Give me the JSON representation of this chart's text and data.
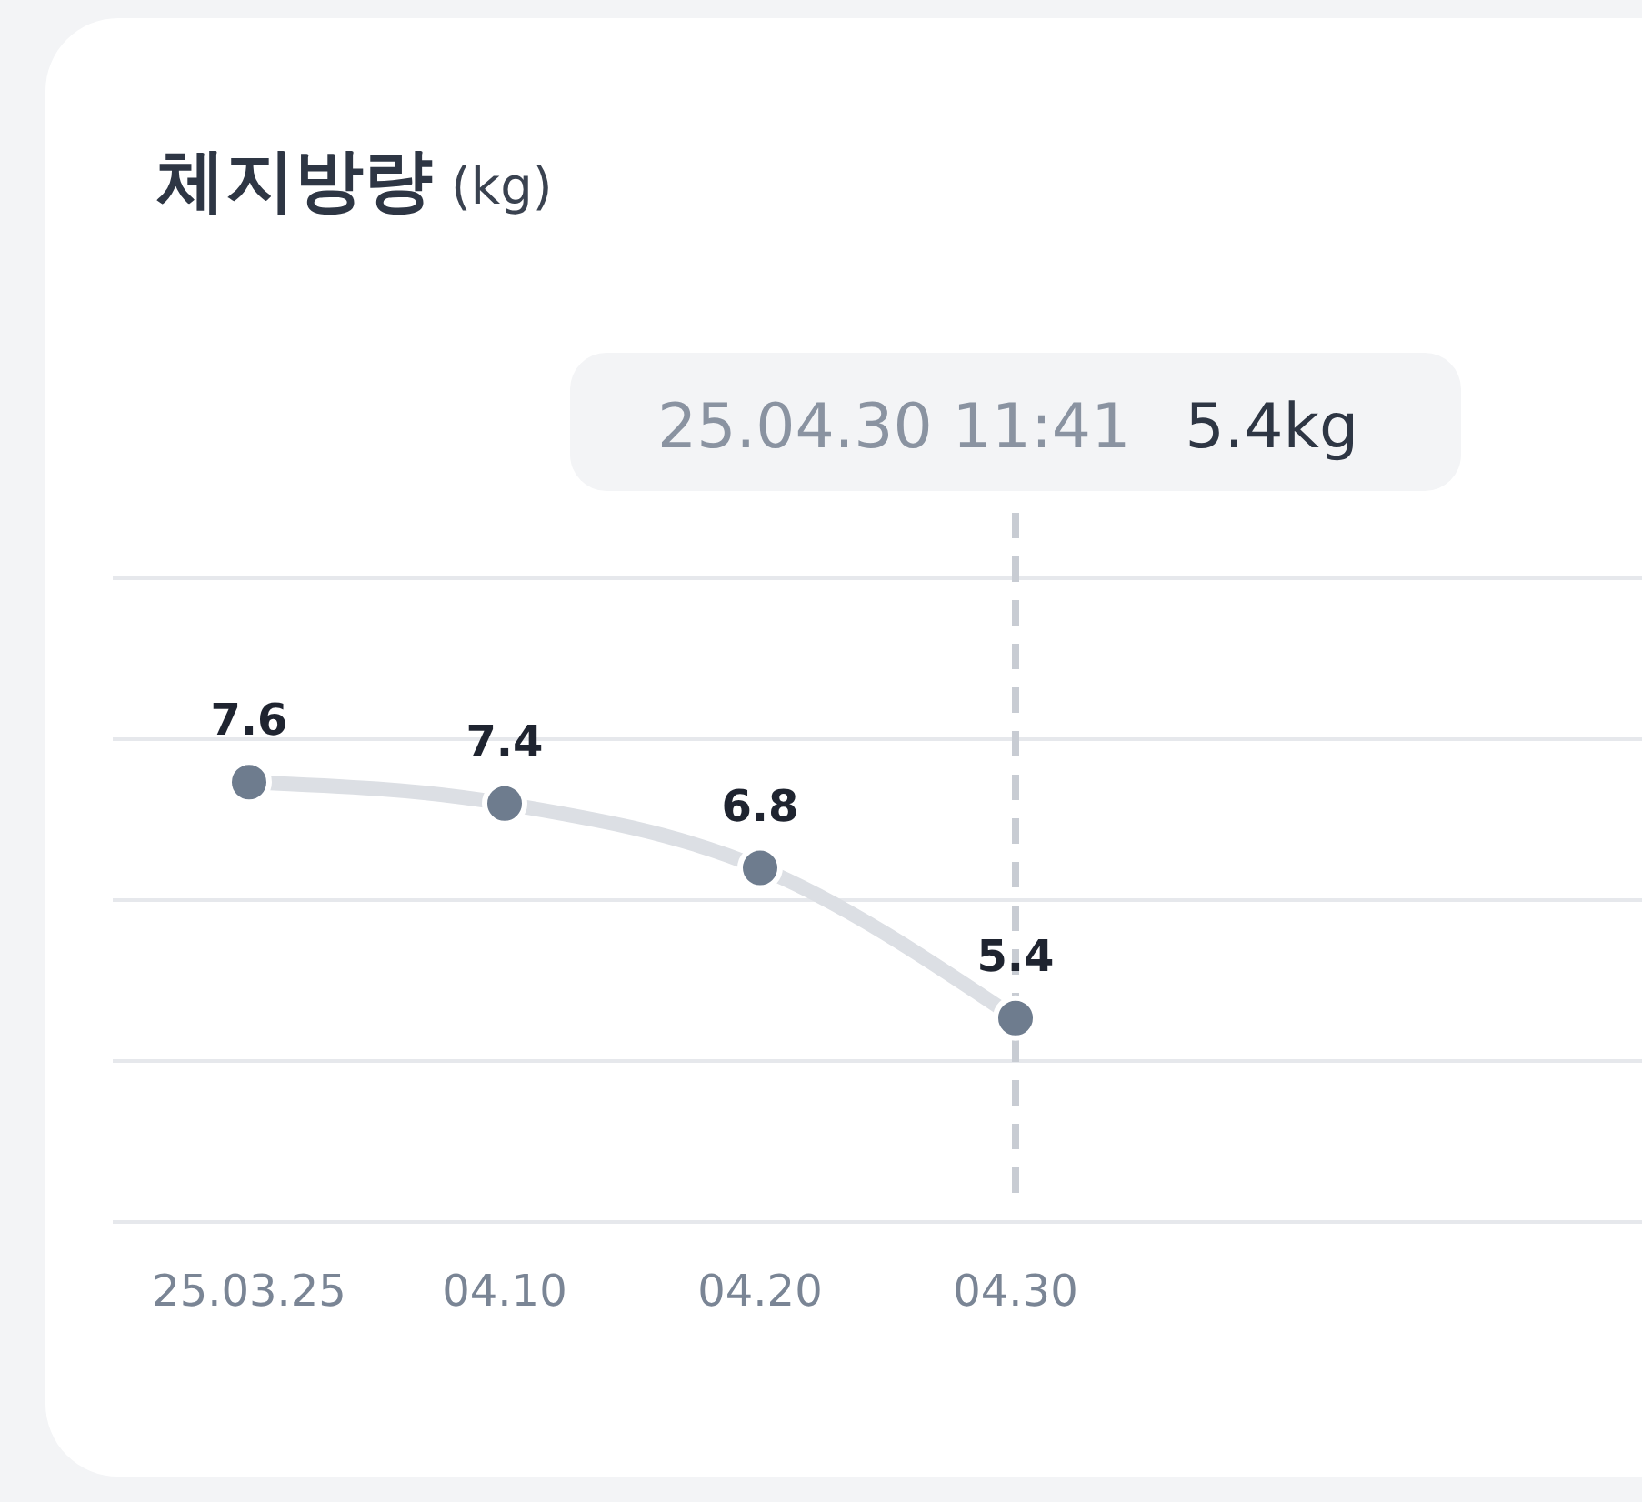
{
  "chart_data": {
    "type": "line",
    "title": "체지방량 (kg)",
    "categories": [
      "25.03.25",
      "04.10",
      "04.20",
      "04.30"
    ],
    "series": [
      {
        "color": "#6e7c8e",
        "values": [
          7.6,
          7.4,
          6.8,
          5.4
        ]
      }
    ],
    "ylim": [
      3.5,
      9.5
    ],
    "yticks": [
      {
        "value": 3.5,
        "label": null
      },
      {
        "value": 5,
        "label": null
      },
      {
        "value": 6.5,
        "label": null
      },
      {
        "value": 8,
        "label": null
      },
      {
        "value": 9.5,
        "label": null
      }
    ],
    "tick_labels": "x",
    "grid": "y",
    "data_labels": true,
    "marker": "circle",
    "line_style": "solid",
    "ref_lines": [
      {
        "axis": "x",
        "value": "04.30",
        "color": "#c8ccd3",
        "line_style": "dashed"
      }
    ],
    "annotations": [
      "25.04.30 11:41 5.4kg"
    ]
  }
}
